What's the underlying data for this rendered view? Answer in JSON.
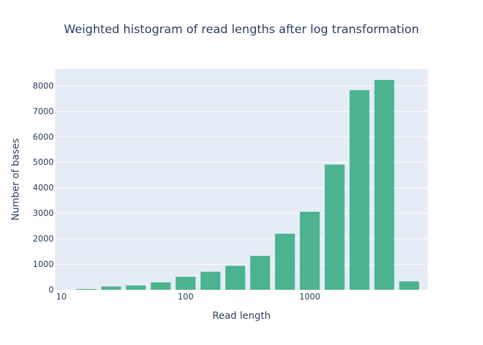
{
  "chart_data": {
    "type": "bar",
    "title": "Weighted histogram of read lengths after log transformation",
    "xlabel": "Read length",
    "ylabel": "Number of bases",
    "x_scale": "log",
    "x_ticks": [
      "10",
      "100",
      "1000"
    ],
    "x_tick_values": [
      10,
      100,
      1000
    ],
    "y_ticks": [
      "0",
      "1000",
      "2000",
      "3000",
      "4000",
      "5000",
      "6000",
      "7000",
      "8000"
    ],
    "y_tick_values": [
      0,
      1000,
      2000,
      3000,
      4000,
      5000,
      6000,
      7000,
      8000
    ],
    "ylim": [
      0,
      8660
    ],
    "bar_color": "#4bb38f",
    "plot_bg": "#e5ecf6",
    "grid": true,
    "bins": [
      {
        "start": 12.6,
        "end": 20.0,
        "value": 30
      },
      {
        "start": 20.0,
        "end": 31.6,
        "value": 130
      },
      {
        "start": 31.6,
        "end": 50.1,
        "value": 170
      },
      {
        "start": 50.1,
        "end": 79.4,
        "value": 290
      },
      {
        "start": 79.4,
        "end": 125.9,
        "value": 510
      },
      {
        "start": 125.9,
        "end": 199.5,
        "value": 710
      },
      {
        "start": 199.5,
        "end": 316.2,
        "value": 940
      },
      {
        "start": 316.2,
        "end": 501.2,
        "value": 1330
      },
      {
        "start": 501.2,
        "end": 794.3,
        "value": 2200
      },
      {
        "start": 794.3,
        "end": 1258.9,
        "value": 3060
      },
      {
        "start": 1258.9,
        "end": 1995.3,
        "value": 4910
      },
      {
        "start": 1995.3,
        "end": 3162.3,
        "value": 7830
      },
      {
        "start": 3162.3,
        "end": 5011.9,
        "value": 8230
      },
      {
        "start": 5011.9,
        "end": 7943.3,
        "value": 330
      }
    ]
  }
}
